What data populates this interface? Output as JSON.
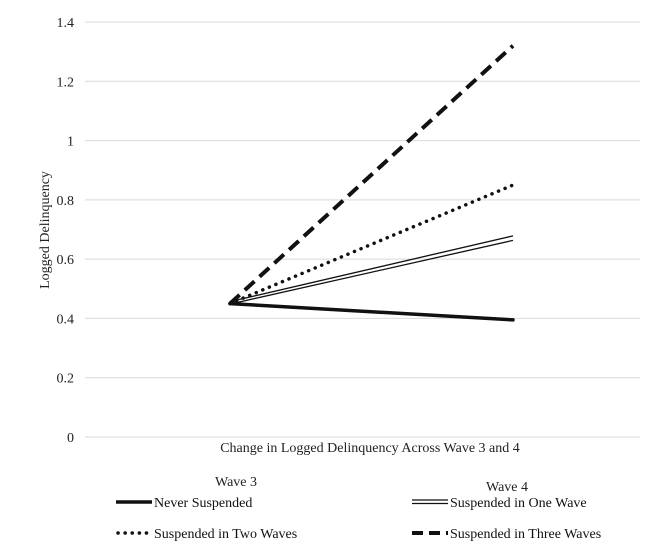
{
  "chart_data": {
    "type": "line",
    "title": "",
    "xlabel": "Change in Logged Delinquency Across Wave 3 and 4",
    "ylabel": "Logged Delinquency",
    "categories": [
      "Wave 3",
      "Wave 4"
    ],
    "ylim": [
      0,
      1.4
    ],
    "yticks": [
      "0",
      "0.2",
      "0.4",
      "0.6",
      "0.8",
      "1",
      "1.2",
      "1.4"
    ],
    "grid": true,
    "legend_position": "bottom",
    "series": [
      {
        "name": "Never Suspended",
        "values": [
          0.45,
          0.395
        ],
        "style": "solid-thick",
        "color": "#111111"
      },
      {
        "name": "Suspended in One Wave",
        "values": [
          0.45,
          0.67
        ],
        "style": "double",
        "color": "#111111"
      },
      {
        "name": "Suspended in Two Waves",
        "values": [
          0.45,
          0.85
        ],
        "style": "dotted",
        "color": "#111111"
      },
      {
        "name": "Suspended in Three Waves",
        "values": [
          0.45,
          1.32
        ],
        "style": "dashed",
        "color": "#111111"
      }
    ]
  }
}
